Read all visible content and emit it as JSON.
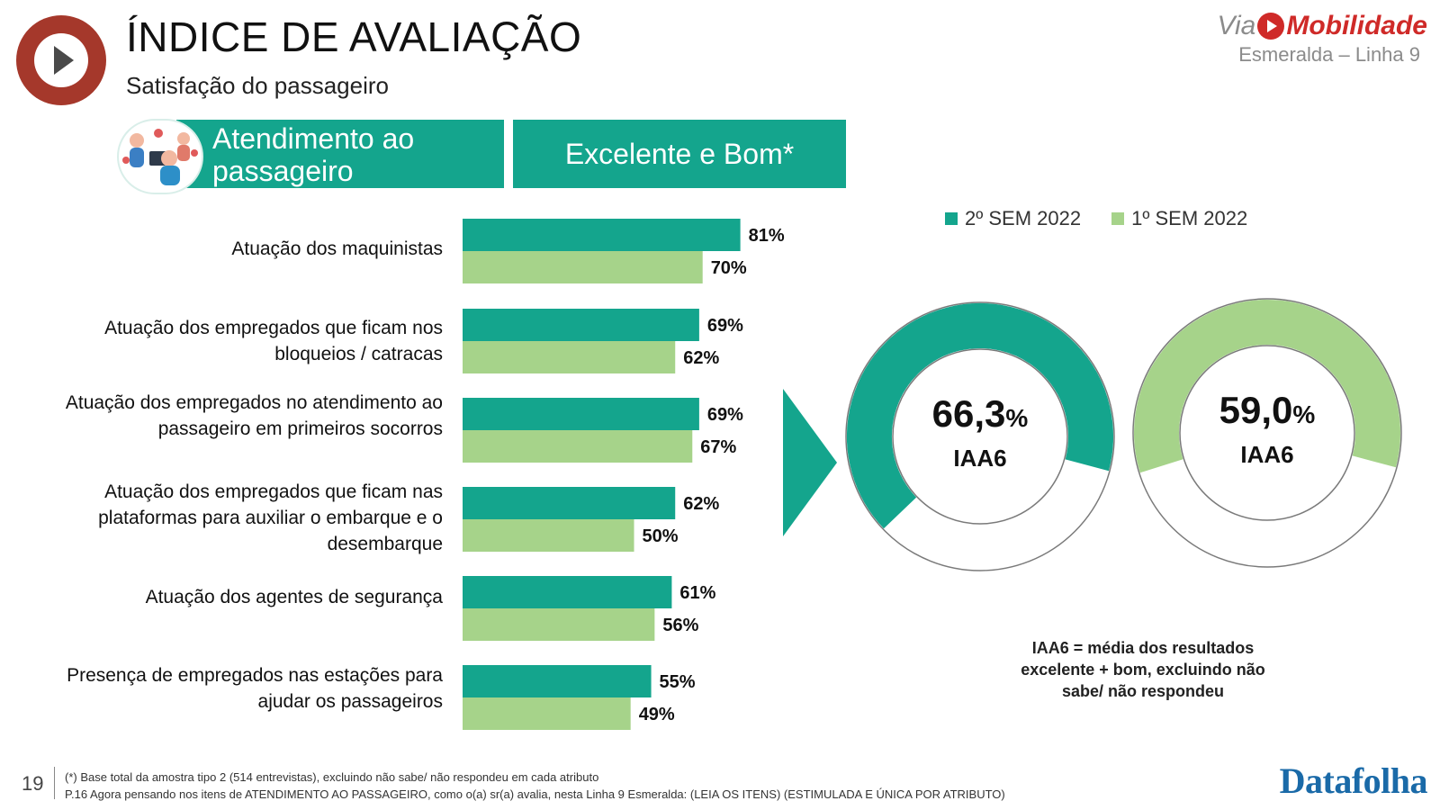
{
  "header": {
    "title": "ÍNDICE DE AVALIAÇÃO",
    "subtitle": "Satisfação do passageiro"
  },
  "brand": {
    "name_prefix": "Via",
    "name_suffix": "Mobilidade",
    "line": "Esmeralda – Linha 9"
  },
  "banners": {
    "section": "Atendimento ao passageiro",
    "metric": "Excelente e Bom*"
  },
  "colors": {
    "teal": "#14a58d",
    "light_green": "#a6d38a",
    "logo_red": "#a5382b",
    "brand_red": "#cf2a28"
  },
  "chart_data": [
    {
      "type": "bar",
      "orientation": "horizontal",
      "categories": [
        "Atuação dos maquinistas",
        "Atuação dos empregados que ficam nos bloqueios / catracas",
        "Atuação dos empregados no atendimento ao passageiro em primeiros socorros",
        "Atuação dos empregados que ficam nas plataformas para auxiliar o embarque e o desembarque",
        "Atuação dos agentes de segurança",
        "Presença de empregados nas estações para ajudar os passageiros"
      ],
      "series": [
        {
          "name": "2º SEM 2022",
          "color": "#14a58d",
          "values": [
            81,
            69,
            69,
            62,
            61,
            55
          ],
          "labels": [
            "81%",
            "69%",
            "69%",
            "62%",
            "61%",
            "55%"
          ]
        },
        {
          "name": "1º SEM 2022",
          "color": "#a6d38a",
          "values": [
            70,
            62,
            67,
            50,
            56,
            49
          ],
          "labels": [
            "70%",
            "62%",
            "67%",
            "50%",
            "56%",
            "49%"
          ]
        }
      ],
      "xlim": [
        0,
        100
      ],
      "unit": "%",
      "legend": [
        "2º SEM 2022",
        "1º SEM 2022"
      ]
    },
    {
      "type": "pie",
      "style": "donut",
      "series": [
        {
          "name": "2º SEM 2022",
          "value": 66.3,
          "display": "66,3",
          "unit": "%",
          "label": "IAA6",
          "color": "#14a58d"
        },
        {
          "name": "1º SEM 2022",
          "value": 59.0,
          "display": "59,0",
          "unit": "%",
          "label": "IAA6",
          "color": "#a6d38a"
        }
      ]
    }
  ],
  "note": "IAA6 = média dos resultados excelente + bom, excluindo não sabe/ não respondeu",
  "footer": {
    "page": "19",
    "line1": "(*) Base total da amostra tipo 2 (514 entrevistas), excluindo não sabe/ não respondeu em cada atributo",
    "line2": "P.16 Agora pensando nos itens de ATENDIMENTO AO PASSAGEIRO, como o(a) sr(a) avalia, nesta Linha 9 Esmeralda: (LEIA OS ITENS) (ESTIMULADA E ÚNICA POR ATRIBUTO)",
    "logo": "Datafolha"
  }
}
